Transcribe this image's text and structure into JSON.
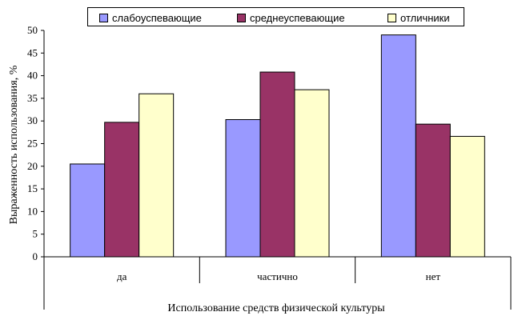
{
  "chart_data": {
    "type": "bar",
    "categories": [
      "да",
      "частично",
      "нет"
    ],
    "series": [
      {
        "name": "слабоуспевающие",
        "values": [
          20.5,
          30.3,
          49
        ],
        "color": "#9999ff"
      },
      {
        "name": "среднеуспевающие",
        "values": [
          29.7,
          40.8,
          29.3
        ],
        "color": "#993366"
      },
      {
        "name": "отличники",
        "values": [
          36,
          36.9,
          26.6
        ],
        "color": "#ffffcc"
      }
    ],
    "title": "",
    "xlabel": "Использование средств физической культуры",
    "ylabel": "Выраженность использования, %",
    "ylim": [
      0,
      50
    ],
    "yticks": [
      "0",
      "5",
      "10",
      "15",
      "20",
      "25",
      "30",
      "35",
      "40",
      "45",
      "50"
    ],
    "grid": false,
    "legend_position": "top"
  }
}
